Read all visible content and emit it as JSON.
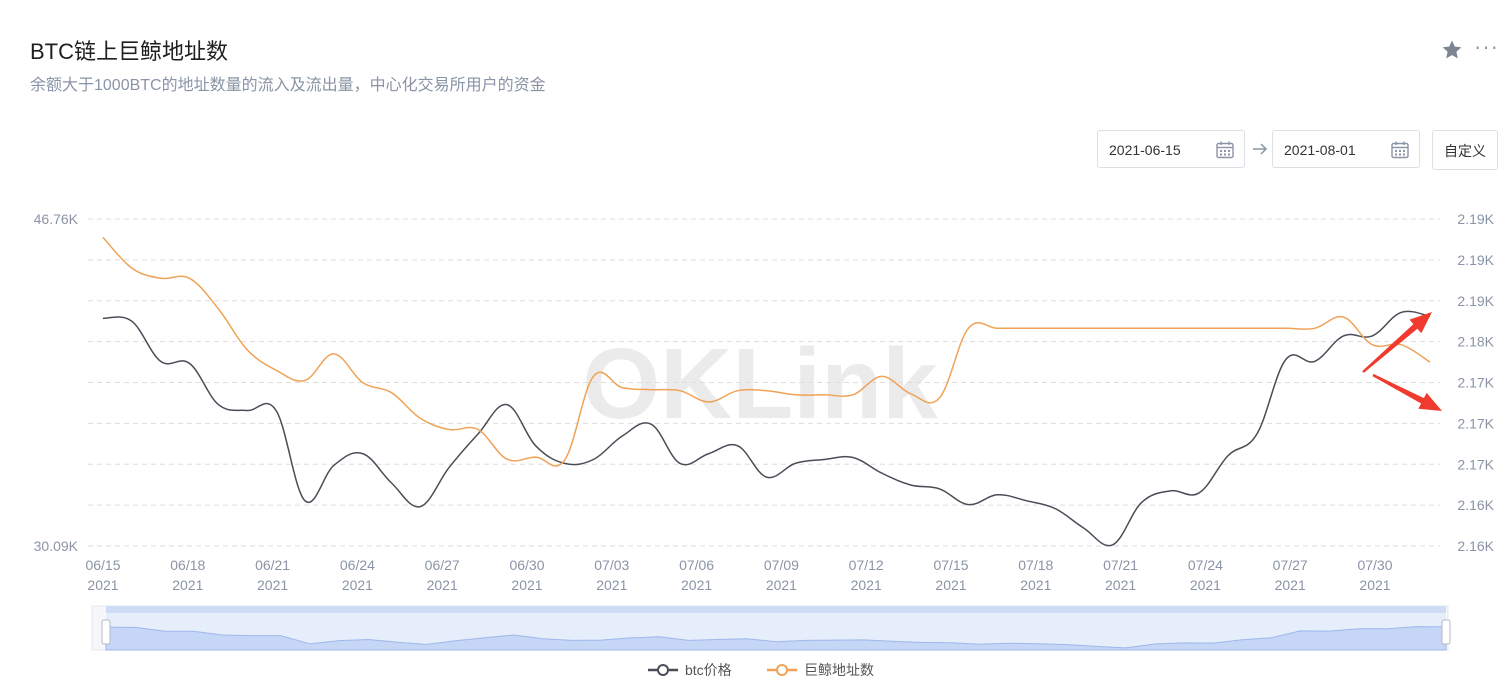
{
  "header": {
    "title": "BTC链上巨鲸地址数",
    "subtitle": "余额大于1000BTC的地址数量的流入及流出量，中心化交易所用户的资金"
  },
  "toolbar": {
    "more_label": "···",
    "start_date": "2021-06-15",
    "end_date": "2021-08-01",
    "custom_label": "自定义"
  },
  "watermark": "OKLink",
  "colors": {
    "btc_price": "#4a4d57",
    "whale": "#f0a257",
    "grid": "#dddddd",
    "slider_fill": "#dce7fb",
    "annotation": "#f03a2e"
  },
  "chart_data": {
    "type": "line",
    "title": "BTC链上巨鲸地址数",
    "x_tick_labels": [
      {
        "md": "06/15",
        "year": "2021"
      },
      {
        "md": "06/18",
        "year": "2021"
      },
      {
        "md": "06/21",
        "year": "2021"
      },
      {
        "md": "06/24",
        "year": "2021"
      },
      {
        "md": "06/27",
        "year": "2021"
      },
      {
        "md": "06/30",
        "year": "2021"
      },
      {
        "md": "07/03",
        "year": "2021"
      },
      {
        "md": "07/06",
        "year": "2021"
      },
      {
        "md": "07/09",
        "year": "2021"
      },
      {
        "md": "07/12",
        "year": "2021"
      },
      {
        "md": "07/15",
        "year": "2021"
      },
      {
        "md": "07/18",
        "year": "2021"
      },
      {
        "md": "07/21",
        "year": "2021"
      },
      {
        "md": "07/24",
        "year": "2021"
      },
      {
        "md": "07/27",
        "year": "2021"
      },
      {
        "md": "07/30",
        "year": "2021"
      }
    ],
    "x_range": [
      "2021-06-15",
      "2021-07-31"
    ],
    "left_axis": {
      "tick_labels": [
        "46.76K",
        "30.09K"
      ],
      "range": [
        30090,
        46760
      ]
    },
    "right_axis": {
      "tick_labels": [
        "2.19K",
        "2.19K",
        "2.19K",
        "2.18K",
        "2.17K",
        "2.17K",
        "2.17K",
        "2.16K",
        "2.16K"
      ],
      "range": [
        2160,
        2192
      ]
    },
    "series": [
      {
        "name": "btc价格",
        "axis": "left",
        "color": "#4a4d57",
        "values": [
          [
            "2021-06-15",
            41700
          ],
          [
            "2021-06-16",
            41550
          ],
          [
            "2021-06-17",
            39500
          ],
          [
            "2021-06-18",
            39400
          ],
          [
            "2021-06-19",
            37300
          ],
          [
            "2021-06-20",
            37000
          ],
          [
            "2021-06-21",
            37000
          ],
          [
            "2021-06-22",
            32400
          ],
          [
            "2021-06-23",
            34200
          ],
          [
            "2021-06-24",
            34800
          ],
          [
            "2021-06-25",
            33300
          ],
          [
            "2021-06-26",
            32100
          ],
          [
            "2021-06-27",
            34100
          ],
          [
            "2021-06-28",
            35800
          ],
          [
            "2021-06-29",
            37300
          ],
          [
            "2021-06-30",
            35200
          ],
          [
            "2021-07-01",
            34300
          ],
          [
            "2021-07-02",
            34500
          ],
          [
            "2021-07-03",
            35700
          ],
          [
            "2021-07-04",
            36300
          ],
          [
            "2021-07-05",
            34300
          ],
          [
            "2021-07-06",
            34800
          ],
          [
            "2021-07-07",
            35200
          ],
          [
            "2021-07-08",
            33600
          ],
          [
            "2021-07-09",
            34300
          ],
          [
            "2021-07-10",
            34500
          ],
          [
            "2021-07-11",
            34600
          ],
          [
            "2021-07-12",
            33800
          ],
          [
            "2021-07-13",
            33200
          ],
          [
            "2021-07-14",
            33000
          ],
          [
            "2021-07-15",
            32200
          ],
          [
            "2021-07-16",
            32700
          ],
          [
            "2021-07-17",
            32400
          ],
          [
            "2021-07-18",
            32000
          ],
          [
            "2021-07-19",
            31000
          ],
          [
            "2021-07-20",
            30150
          ],
          [
            "2021-07-21",
            32300
          ],
          [
            "2021-07-22",
            32900
          ],
          [
            "2021-07-23",
            32800
          ],
          [
            "2021-07-24",
            34700
          ],
          [
            "2021-07-25",
            35800
          ],
          [
            "2021-07-26",
            39600
          ],
          [
            "2021-07-27",
            39500
          ],
          [
            "2021-07-28",
            40800
          ],
          [
            "2021-07-29",
            40800
          ],
          [
            "2021-07-30",
            42000
          ],
          [
            "2021-07-31",
            41800
          ]
        ]
      },
      {
        "name": "巨鲸地址数",
        "axis": "right",
        "color": "#f0a257",
        "values": [
          [
            "2021-06-15",
            2190.2
          ],
          [
            "2021-06-16",
            2187.2
          ],
          [
            "2021-06-17",
            2186.2
          ],
          [
            "2021-06-18",
            2186.2
          ],
          [
            "2021-06-19",
            2183.2
          ],
          [
            "2021-06-20",
            2179.2
          ],
          [
            "2021-06-21",
            2177.2
          ],
          [
            "2021-06-22",
            2176.2
          ],
          [
            "2021-06-23",
            2178.8
          ],
          [
            "2021-06-24",
            2176.0
          ],
          [
            "2021-06-25",
            2175.0
          ],
          [
            "2021-06-26",
            2172.5
          ],
          [
            "2021-06-27",
            2171.4
          ],
          [
            "2021-06-28",
            2171.4
          ],
          [
            "2021-06-29",
            2168.5
          ],
          [
            "2021-06-30",
            2168.7
          ],
          [
            "2021-07-01",
            2168.4
          ],
          [
            "2021-07-02",
            2176.6
          ],
          [
            "2021-07-03",
            2175.5
          ],
          [
            "2021-07-04",
            2175.3
          ],
          [
            "2021-07-05",
            2175.2
          ],
          [
            "2021-07-06",
            2174.1
          ],
          [
            "2021-07-07",
            2175.2
          ],
          [
            "2021-07-08",
            2175.2
          ],
          [
            "2021-07-09",
            2174.8
          ],
          [
            "2021-07-10",
            2174.8
          ],
          [
            "2021-07-11",
            2174.8
          ],
          [
            "2021-07-12",
            2176.6
          ],
          [
            "2021-07-13",
            2174.9
          ],
          [
            "2021-07-14",
            2174.5
          ],
          [
            "2021-07-15",
            2181.3
          ],
          [
            "2021-07-16",
            2181.3
          ],
          [
            "2021-07-17",
            2181.3
          ],
          [
            "2021-07-18",
            2181.3
          ],
          [
            "2021-07-19",
            2181.3
          ],
          [
            "2021-07-20",
            2181.3
          ],
          [
            "2021-07-21",
            2181.3
          ],
          [
            "2021-07-22",
            2181.3
          ],
          [
            "2021-07-23",
            2181.3
          ],
          [
            "2021-07-24",
            2181.3
          ],
          [
            "2021-07-25",
            2181.3
          ],
          [
            "2021-07-26",
            2181.3
          ],
          [
            "2021-07-27",
            2181.3
          ],
          [
            "2021-07-28",
            2182.4
          ],
          [
            "2021-07-29",
            2179.7
          ],
          [
            "2021-07-30",
            2179.7
          ],
          [
            "2021-07-31",
            2178.0
          ]
        ]
      }
    ],
    "grid": true,
    "legend_position": "bottom-center",
    "annotations": [
      "red arrow pointing up-right at btc价格 end",
      "red arrow pointing down-right at 巨鲸地址数 end"
    ]
  }
}
